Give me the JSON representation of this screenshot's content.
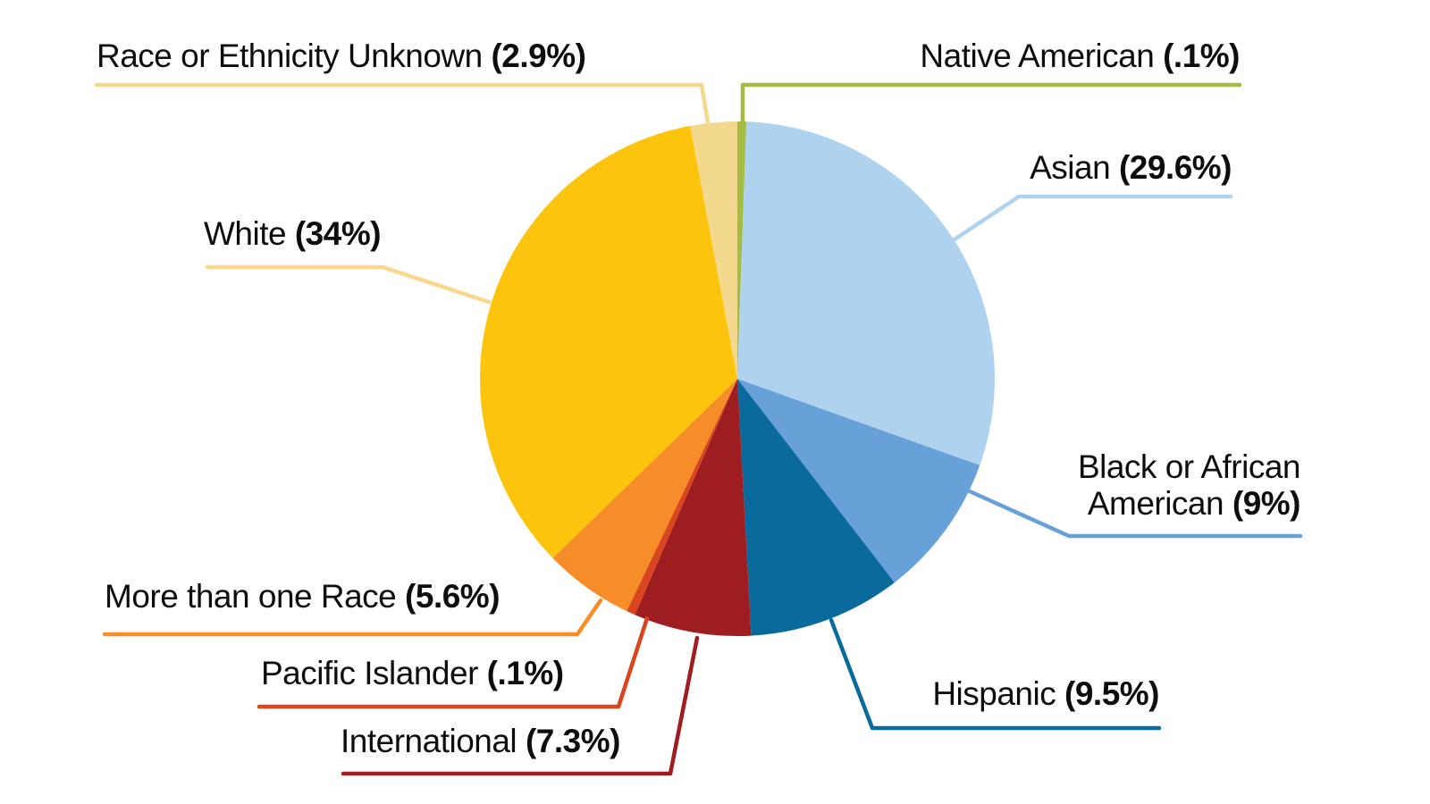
{
  "chart_data": {
    "type": "pie",
    "title": "",
    "legend_position": "callout-labels",
    "start_angle_deg": 0,
    "direction": "clockwise",
    "background_color": "#ffffff",
    "label_text_color": "#0d0d0d",
    "slices": [
      {
        "label": "Native American",
        "value": 0.1,
        "pct_text": "(.1%)",
        "color": "#A4BC42"
      },
      {
        "label": "Asian",
        "value": 29.6,
        "pct_text": "(29.6%)",
        "color": "#AFD3EF"
      },
      {
        "label": "Black or African American",
        "value": 9,
        "pct_text": "(9%)",
        "color": "#68A0D8"
      },
      {
        "label": "Hispanic",
        "value": 9.5,
        "pct_text": "(9.5%)",
        "color": "#0A6A9B"
      },
      {
        "label": "International",
        "value": 7.3,
        "pct_text": "(7.3%)",
        "color": "#9E1D20"
      },
      {
        "label": "Pacific Islander",
        "value": 0.1,
        "pct_text": "(.1%)",
        "color": "#D9451F"
      },
      {
        "label": "More than one Race",
        "value": 5.6,
        "pct_text": "(5.6%)",
        "color": "#F68D28"
      },
      {
        "label": "White",
        "value": 34,
        "pct_text": "(34%)",
        "color": "#FCC40D",
        "line_color": "#F9D78B"
      },
      {
        "label": "Race or Ethnicity Unknown",
        "value": 2.9,
        "pct_text": "(2.9%)",
        "color": "#F2D98E"
      }
    ]
  }
}
